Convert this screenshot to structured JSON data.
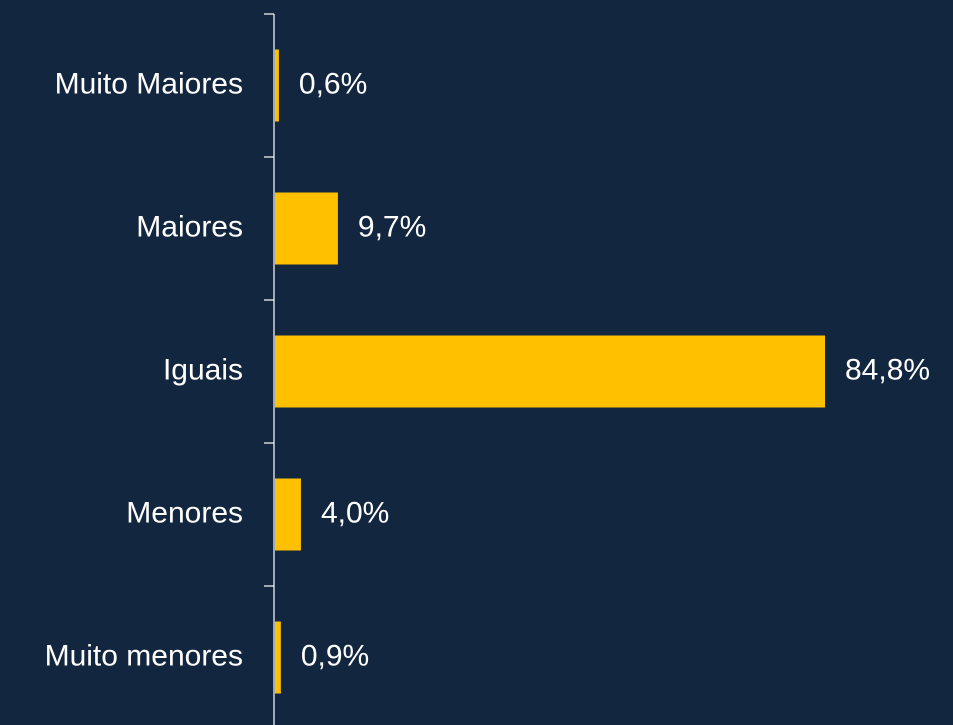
{
  "chart_data": {
    "type": "bar",
    "orientation": "horizontal",
    "categories": [
      "Muito Maiores",
      "Maiores",
      "Iguais",
      "Menores",
      "Muito menores"
    ],
    "values": [
      0.6,
      9.7,
      84.8,
      4.0,
      0.9
    ],
    "value_labels": [
      "0,6%",
      "9,7%",
      "84,8%",
      "4,0%",
      "0,9%"
    ],
    "color": "#ffc000"
  }
}
